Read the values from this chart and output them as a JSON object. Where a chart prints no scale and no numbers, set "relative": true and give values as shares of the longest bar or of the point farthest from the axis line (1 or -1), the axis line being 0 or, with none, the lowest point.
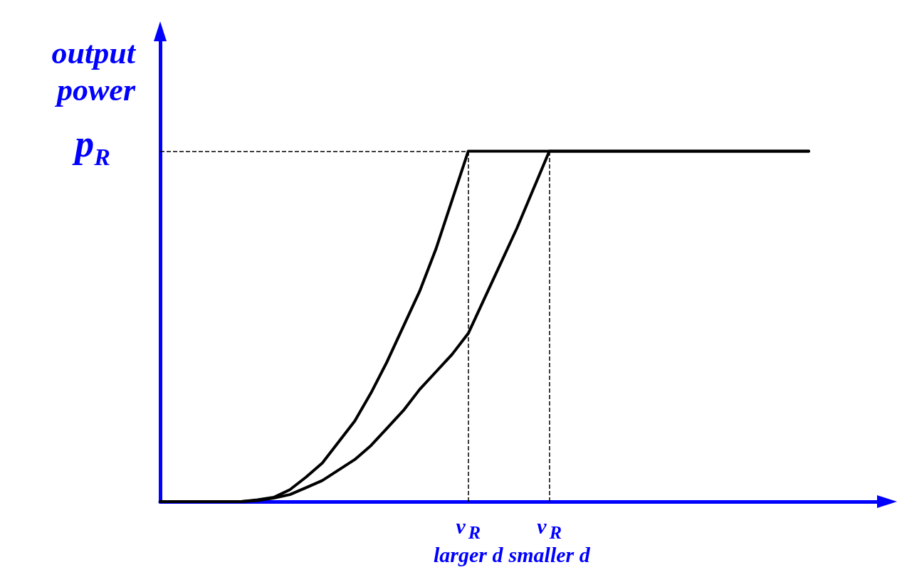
{
  "chart_data": {
    "type": "line",
    "relative": true,
    "ylabel": "output\npower",
    "categories": [
      null,
      null,
      null,
      null,
      null,
      null,
      null,
      null,
      null,
      null,
      null,
      null,
      null,
      null,
      null,
      null,
      null,
      null,
      null,
      "v$_{R}$\nlarger d",
      null,
      null,
      null,
      null,
      "v$_{R}$\nsmaller d",
      null,
      null,
      null,
      null,
      null,
      null,
      null,
      null,
      null,
      null,
      null,
      null,
      null,
      null,
      null,
      null,
      null,
      null,
      null,
      null,
      null
    ],
    "series": [
      {
        "color": "#000000",
        "values": [
          0,
          0,
          0,
          0,
          0,
          0,
          0.005,
          0.012,
          0.034,
          0.07,
          0.11,
          0.17,
          0.23,
          0.31,
          0.4,
          0.5,
          0.6,
          0.72,
          0.86,
          1,
          1,
          1,
          1,
          1,
          1,
          1,
          1,
          1,
          1,
          1,
          1,
          1,
          1,
          1,
          1,
          1,
          1,
          1,
          1,
          1,
          1,
          null,
          null,
          null,
          null,
          null
        ]
      },
      {
        "color": "#000000",
        "values": [
          0,
          0,
          0,
          0,
          0,
          0,
          0.003,
          0.01,
          0.02,
          0.04,
          0.06,
          0.09,
          0.12,
          0.16,
          0.21,
          0.26,
          0.32,
          0.37,
          0.42,
          0.48,
          0.58,
          0.68,
          0.78,
          0.89,
          1,
          1,
          1,
          1,
          1,
          1,
          1,
          1,
          1,
          1,
          1,
          1,
          1,
          1,
          1,
          1,
          1,
          null,
          null,
          null,
          null,
          null
        ]
      }
    ],
    "ref_lines": [
      {
        "axis": "y",
        "value": 1,
        "label": "p$_{R}$",
        "line_style": "dashed",
        "color": "#000000"
      },
      {
        "axis": "x",
        "value": "v$_{R}$\nlarger d",
        "line_style": "dashed",
        "color": "#000000"
      },
      {
        "axis": "x",
        "value": "v$_{R}$\nsmaller d",
        "line_style": "dashed",
        "color": "#000000"
      }
    ],
    "marker": "none",
    "line_style": "solid",
    "grid": false
  }
}
